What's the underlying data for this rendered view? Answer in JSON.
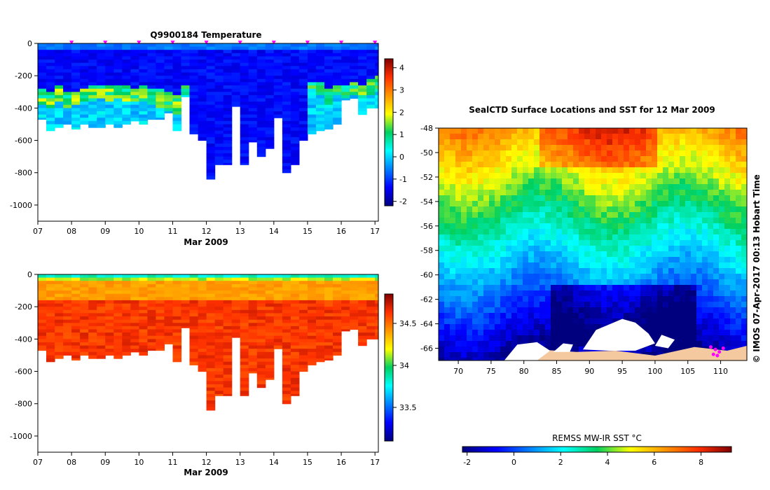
{
  "chart_data": [
    {
      "type": "heatmap",
      "title": "Q9900184  Temperature",
      "xlabel": "Mar 2009",
      "x_ticks": [
        "07",
        "08",
        "09",
        "10",
        "11",
        "12",
        "13",
        "14",
        "15",
        "16",
        "17"
      ],
      "x_range": [
        7,
        17.1
      ],
      "y_ticks": [
        "0",
        "-200",
        "-400",
        "-600",
        "-800",
        "-1000"
      ],
      "ylim": [
        -1100,
        0
      ],
      "colorbar": {
        "ticks": [
          "4",
          "3",
          "2",
          "1",
          "0",
          "-1",
          "-2"
        ],
        "range": [
          -2.2,
          4.4
        ],
        "scale": "jet"
      },
      "profile_markers_x": [
        8,
        9,
        10,
        11,
        12,
        13,
        14,
        15,
        16,
        17
      ],
      "profiles": [
        {
          "x": 7.0,
          "depth": 470,
          "cold_top": 0,
          "warm": [
            280,
            370
          ]
        },
        {
          "x": 7.25,
          "depth": 540,
          "cold_top": 0,
          "warm": [
            300,
            390
          ]
        },
        {
          "x": 7.5,
          "depth": 520,
          "cold_top": 0,
          "warm": [
            260,
            360
          ]
        },
        {
          "x": 7.75,
          "depth": 500,
          "cold_top": 0,
          "warm": [
            300,
            400
          ]
        },
        {
          "x": 8.0,
          "depth": 530,
          "cold_top": 0,
          "warm": [
            290,
            380
          ]
        },
        {
          "x": 8.25,
          "depth": 500,
          "cold_top": 0,
          "warm": [
            270,
            360
          ]
        },
        {
          "x": 8.5,
          "depth": 520,
          "cold_top": 0,
          "warm": [
            260,
            350
          ]
        },
        {
          "x": 8.75,
          "depth": 520,
          "cold_top": 0,
          "warm": [
            250,
            340
          ]
        },
        {
          "x": 9.0,
          "depth": 500,
          "cold_top": 0,
          "warm": [
            260,
            350
          ]
        },
        {
          "x": 9.25,
          "depth": 520,
          "cold_top": 0,
          "warm": [
            250,
            340
          ]
        },
        {
          "x": 9.5,
          "depth": 500,
          "cold_top": 0,
          "warm": [
            260,
            360
          ]
        },
        {
          "x": 9.75,
          "depth": 480,
          "cold_top": 0,
          "warm": [
            270,
            360
          ]
        },
        {
          "x": 10.0,
          "depth": 500,
          "cold_top": 0,
          "warm": [
            260,
            350
          ]
        },
        {
          "x": 10.25,
          "depth": 470,
          "cold_top": 0,
          "warm": [
            270,
            380
          ]
        },
        {
          "x": 10.5,
          "depth": 470,
          "cold_top": 0,
          "warm": [
            280,
            400
          ]
        },
        {
          "x": 10.75,
          "depth": 430,
          "cold_top": 0,
          "warm": [
            290,
            420
          ]
        },
        {
          "x": 11.0,
          "depth": 540,
          "cold_top": 0,
          "warm": [
            310,
            430
          ]
        },
        {
          "x": 11.25,
          "depth": 330,
          "cold_top": 0,
          "warm": [
            260,
            320
          ]
        },
        {
          "x": 11.5,
          "depth": 560,
          "cold_top": 0,
          "warm": null
        },
        {
          "x": 11.75,
          "depth": 600,
          "cold_top": 0,
          "warm": null
        },
        {
          "x": 12.0,
          "depth": 840,
          "cold_top": 0,
          "warm": null
        },
        {
          "x": 12.25,
          "depth": 750,
          "cold_top": 0,
          "warm": null
        },
        {
          "x": 12.5,
          "depth": 750,
          "cold_top": 0,
          "warm": null
        },
        {
          "x": 12.75,
          "depth": 390,
          "cold_top": 0,
          "warm": null
        },
        {
          "x": 13.0,
          "depth": 750,
          "cold_top": 0,
          "warm": null
        },
        {
          "x": 13.25,
          "depth": 610,
          "cold_top": 0,
          "warm": null
        },
        {
          "x": 13.5,
          "depth": 700,
          "cold_top": 0,
          "warm": null
        },
        {
          "x": 13.75,
          "depth": 650,
          "cold_top": 0,
          "warm": null
        },
        {
          "x": 14.0,
          "depth": 460,
          "cold_top": 0,
          "warm": null
        },
        {
          "x": 14.25,
          "depth": 800,
          "cold_top": 0,
          "warm": null
        },
        {
          "x": 14.5,
          "depth": 750,
          "cold_top": 0,
          "warm": null
        },
        {
          "x": 14.75,
          "depth": 600,
          "cold_top": 0,
          "warm": null
        },
        {
          "x": 15.0,
          "depth": 560,
          "cold_top": 0,
          "warm": [
            230,
            280
          ]
        },
        {
          "x": 15.25,
          "depth": 540,
          "cold_top": 0,
          "warm": [
            240,
            320
          ]
        },
        {
          "x": 15.5,
          "depth": 530,
          "cold_top": 0,
          "warm": [
            280,
            370
          ]
        },
        {
          "x": 15.75,
          "depth": 500,
          "cold_top": 0,
          "warm": [
            250,
            320
          ]
        },
        {
          "x": 16.0,
          "depth": 350,
          "cold_top": 0,
          "warm": [
            260,
            330
          ]
        },
        {
          "x": 16.25,
          "depth": 340,
          "cold_top": 0,
          "warm": [
            240,
            310
          ]
        },
        {
          "x": 16.5,
          "depth": 440,
          "cold_top": 0,
          "warm": [
            250,
            340
          ]
        },
        {
          "x": 16.75,
          "depth": 400,
          "cold_top": 0,
          "warm": [
            220,
            320
          ]
        },
        {
          "x": 17.0,
          "depth": 400,
          "cold_top": 0,
          "warm": [
            200,
            300
          ]
        }
      ]
    },
    {
      "type": "heatmap",
      "title": "",
      "xlabel": "Mar 2009",
      "x_ticks": [
        "07",
        "08",
        "09",
        "10",
        "11",
        "12",
        "13",
        "14",
        "15",
        "16",
        "17"
      ],
      "x_range": [
        7,
        17.1
      ],
      "y_ticks": [
        "0",
        "-200",
        "-400",
        "-600",
        "-800",
        "-1000"
      ],
      "ylim": [
        -1100,
        0
      ],
      "colorbar": {
        "ticks": [
          "34.5",
          "34",
          "33.5"
        ],
        "range": [
          33.1,
          34.85
        ],
        "scale": "jet"
      },
      "profile_depths": [
        470,
        540,
        520,
        500,
        530,
        500,
        520,
        520,
        500,
        520,
        500,
        480,
        500,
        470,
        470,
        430,
        540,
        330,
        560,
        600,
        840,
        750,
        750,
        390,
        750,
        610,
        700,
        650,
        460,
        800,
        750,
        600,
        560,
        540,
        530,
        500,
        350,
        340,
        440,
        400,
        400
      ]
    },
    {
      "type": "heatmap",
      "title": "SealCTD Surface Locations and SST for 12 Mar 2009",
      "x_ticks": [
        "70",
        "75",
        "80",
        "85",
        "90",
        "95",
        "100",
        "105",
        "110"
      ],
      "xlim": [
        67,
        114
      ],
      "y_ticks": [
        "-48",
        "-50",
        "-52",
        "-54",
        "-56",
        "-58",
        "-60",
        "-62",
        "-64",
        "-66"
      ],
      "ylim": [
        -67,
        -48
      ],
      "colorbar": {
        "label": "REMSS MW-IR SST °C",
        "ticks": [
          "-2",
          "0",
          "2",
          "4",
          "6",
          "8"
        ],
        "range": [
          -2.2,
          9.3
        ],
        "scale": "jet"
      },
      "side_text": "© IMOS 07-Apr-2017 00:13 Hobart Time",
      "seal_positions": [
        [
          108.5,
          -65.9
        ],
        [
          109.2,
          -66.1
        ],
        [
          109.8,
          -66.3
        ],
        [
          110.4,
          -66.0
        ],
        [
          108.9,
          -66.5
        ],
        [
          109.5,
          -66.6
        ]
      ]
    }
  ]
}
